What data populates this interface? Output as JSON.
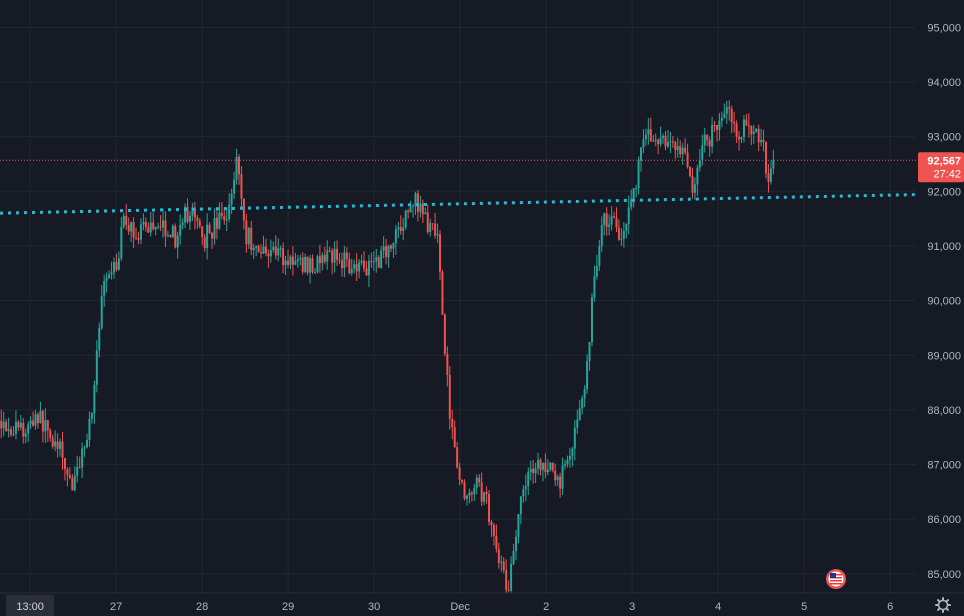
{
  "chart_data": {
    "type": "candlestick",
    "y_axis": {
      "ticks": [
        95000,
        94000,
        93000,
        92000,
        91000,
        90000,
        89000,
        88000,
        87000,
        86000,
        85000
      ],
      "tick_labels": [
        "95,000",
        "94,000",
        "93,000",
        "92,000",
        "91,000",
        "90,000",
        "89,000",
        "88,000",
        "87,000",
        "86,000",
        "85,000"
      ],
      "range": [
        84650,
        95500
      ]
    },
    "x_axis": {
      "labels": [
        "13:00",
        "27",
        "28",
        "29",
        "30",
        "Dec",
        "2",
        "3",
        "4",
        "5",
        "6"
      ],
      "label_values": [
        0,
        1,
        2,
        3,
        4,
        5,
        6,
        7,
        8,
        9,
        10
      ],
      "range": [
        -0.35,
        10.3
      ],
      "highlighted_label": "13:00"
    },
    "current_price": {
      "value": 92567,
      "label": "92,567",
      "countdown": "27:42"
    },
    "trendline": {
      "x": [
        -0.35,
        10.3
      ],
      "y": [
        91600,
        91940
      ]
    },
    "anchors": [
      [
        -0.35,
        87800
      ],
      [
        -0.1,
        87600
      ],
      [
        0.1,
        87900
      ],
      [
        0.35,
        87200
      ],
      [
        0.5,
        86600
      ],
      [
        0.7,
        87800
      ],
      [
        0.85,
        90200
      ],
      [
        1.0,
        90600
      ],
      [
        1.1,
        91500
      ],
      [
        1.25,
        91150
      ],
      [
        1.5,
        91500
      ],
      [
        1.7,
        91100
      ],
      [
        1.85,
        91650
      ],
      [
        2.05,
        91150
      ],
      [
        2.2,
        91450
      ],
      [
        2.3,
        91500
      ],
      [
        2.4,
        92700
      ],
      [
        2.5,
        91200
      ],
      [
        2.65,
        90900
      ],
      [
        2.8,
        91000
      ],
      [
        3.0,
        90700
      ],
      [
        3.25,
        90650
      ],
      [
        3.5,
        90800
      ],
      [
        3.7,
        90750
      ],
      [
        3.9,
        90650
      ],
      [
        4.1,
        90900
      ],
      [
        4.3,
        91300
      ],
      [
        4.45,
        91800
      ],
      [
        4.6,
        91500
      ],
      [
        4.75,
        91100
      ],
      [
        4.85,
        88400
      ],
      [
        4.95,
        87200
      ],
      [
        5.05,
        86300
      ],
      [
        5.2,
        86700
      ],
      [
        5.3,
        86400
      ],
      [
        5.45,
        85300
      ],
      [
        5.55,
        84750
      ],
      [
        5.65,
        85800
      ],
      [
        5.8,
        86900
      ],
      [
        5.95,
        87000
      ],
      [
        6.15,
        86700
      ],
      [
        6.3,
        87300
      ],
      [
        6.45,
        88400
      ],
      [
        6.55,
        90300
      ],
      [
        6.65,
        91500
      ],
      [
        6.8,
        91400
      ],
      [
        6.9,
        91250
      ],
      [
        7.05,
        92300
      ],
      [
        7.15,
        93150
      ],
      [
        7.3,
        92800
      ],
      [
        7.5,
        92900
      ],
      [
        7.6,
        92600
      ],
      [
        7.7,
        92100
      ],
      [
        7.85,
        92900
      ],
      [
        8.0,
        93300
      ],
      [
        8.1,
        93500
      ],
      [
        8.2,
        93000
      ],
      [
        8.35,
        93300
      ],
      [
        8.5,
        92900
      ],
      [
        8.6,
        92200
      ],
      [
        8.66,
        92567
      ]
    ],
    "colors": {
      "up": "#26a69a",
      "down": "#ef5350",
      "background": "#161a25",
      "grid": "#232632",
      "trendline": "#29b6d3",
      "price_line": "#ef5350",
      "axis_text": "#b2b5be"
    },
    "grid": true
  },
  "icons": {
    "flag": "us-flag-icon",
    "settings": "settings-gear-icon"
  }
}
